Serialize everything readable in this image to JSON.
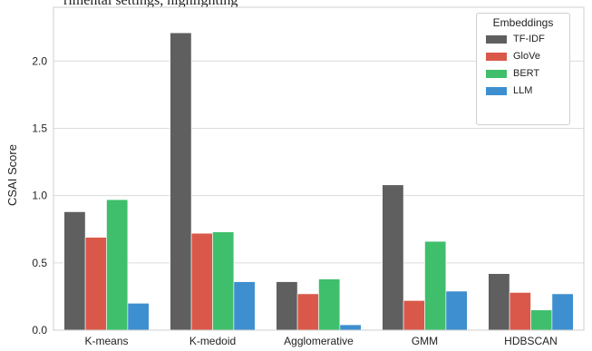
{
  "top_caption": "rimental settings, highlighting",
  "colors": {
    "TF-IDF": "#5f5f5f",
    "GloVe": "#d9584a",
    "BERT": "#3fbf6b",
    "LLM": "#3e8fcf",
    "grid": "#dcdcdc",
    "frame": "#cfcfcf",
    "text": "#222222"
  },
  "chart_data": {
    "type": "bar",
    "title": "",
    "xlabel": "",
    "ylabel": "CSAI Score",
    "ylim": [
      0.0,
      2.4
    ],
    "yticks": [
      "0.0",
      "0.5",
      "1.0",
      "1.5",
      "2.0"
    ],
    "ytick_values": [
      0.0,
      0.5,
      1.0,
      1.5,
      2.0
    ],
    "grid": "horizontal",
    "categories": [
      "K-means",
      "K-medoid",
      "Agglomerative",
      "GMM",
      "HDBSCAN"
    ],
    "legend": {
      "title": "Embeddings",
      "placement": "top-right"
    },
    "series": [
      {
        "name": "TF-IDF",
        "values": [
          0.88,
          2.21,
          0.36,
          1.08,
          0.42
        ]
      },
      {
        "name": "GloVe",
        "values": [
          0.69,
          0.72,
          0.27,
          0.22,
          0.28
        ]
      },
      {
        "name": "BERT",
        "values": [
          0.97,
          0.73,
          0.38,
          0.66,
          0.15
        ]
      },
      {
        "name": "LLM",
        "values": [
          0.2,
          0.36,
          0.04,
          0.29,
          0.27
        ]
      }
    ]
  }
}
